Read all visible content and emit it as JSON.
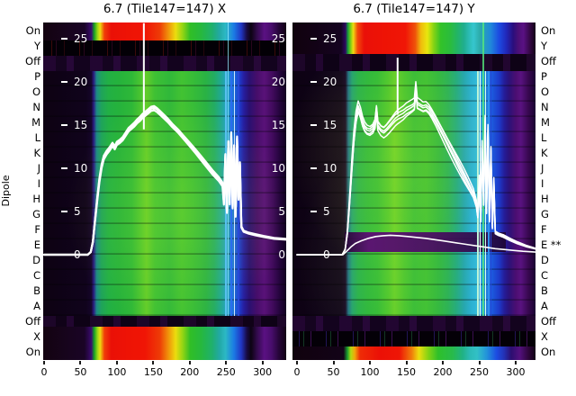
{
  "figure": {
    "left_title": "6.7 (Tile147=147) X",
    "right_title": "6.7 (Tile147=147) Y",
    "y_axis_label": "Dipole"
  },
  "colors": {
    "curve": "#ffffff",
    "text": "#000000",
    "background": "#ffffff"
  },
  "chart_data": {
    "type": "heatmap",
    "description": "Two tile beam-test panels (X and Y polarisation): spectrogram-style heatmaps (channel vs dipole row) with overlaid white power curves on an inner 0-25 scale.",
    "colormap": "jet-like: dark purple -> blue -> green -> yellow -> red",
    "x_ticks": [
      0,
      50,
      100,
      150,
      200,
      250,
      300
    ],
    "inner_y_tick_values": [
      25,
      20,
      15,
      10,
      5,
      0
    ],
    "rows_left": [
      "On",
      "Y",
      "Off",
      "P",
      "O",
      "N",
      "M",
      "L",
      "K",
      "J",
      "I",
      "H",
      "G",
      "F",
      "E",
      "D",
      "C",
      "B",
      "A",
      "Off",
      "X",
      "On"
    ],
    "rows_right": [
      "On",
      "Y",
      "Off",
      "P",
      "O",
      "N",
      "M",
      "L",
      "K",
      "J",
      "I",
      "H",
      "G",
      "F",
      "E **",
      "D",
      "C",
      "B",
      "A",
      "Off",
      "X",
      "On"
    ],
    "panels": [
      {
        "id": "left",
        "title": "6.7 (Tile147=147) X",
        "right_edge_labels": [
          25,
          20,
          15,
          10,
          5,
          0
        ],
        "spikes": [
          [
            137,
            14.5,
            26.8
          ]
        ],
        "series": [
          {
            "name": "beam-power-x",
            "strands": 3,
            "spread": 0.35,
            "spread_max": 2.8,
            "stroke_width": 2.2,
            "points": [
              [
                0,
                0
              ],
              [
                60,
                0
              ],
              [
                64,
                0.3
              ],
              [
                67,
                1.5
              ],
              [
                70,
                4
              ],
              [
                73,
                6.5
              ],
              [
                76,
                8.7
              ],
              [
                79,
                10.3
              ],
              [
                82,
                11.3
              ],
              [
                86,
                11.9
              ],
              [
                90,
                12.3
              ],
              [
                94,
                12.8
              ],
              [
                97,
                12.4
              ],
              [
                100,
                12.9
              ],
              [
                104,
                13.1
              ],
              [
                108,
                13.4
              ],
              [
                112,
                13.9
              ],
              [
                116,
                14.4
              ],
              [
                120,
                14.7
              ],
              [
                124,
                15.0
              ],
              [
                128,
                15.4
              ],
              [
                132,
                15.7
              ],
              [
                135,
                16.0
              ],
              [
                139,
                16.3
              ],
              [
                143,
                16.6
              ],
              [
                147,
                16.9
              ],
              [
                151,
                17.0
              ],
              [
                155,
                16.8
              ],
              [
                159,
                16.5
              ],
              [
                164,
                16.1
              ],
              [
                170,
                15.6
              ],
              [
                176,
                15.0
              ],
              [
                184,
                14.3
              ],
              [
                192,
                13.5
              ],
              [
                200,
                12.7
              ],
              [
                208,
                11.9
              ],
              [
                216,
                11.1
              ],
              [
                224,
                10.3
              ],
              [
                232,
                9.5
              ],
              [
                240,
                8.8
              ],
              [
                245,
                8.2
              ],
              [
                247,
                6.0
              ],
              [
                249,
                11.5
              ],
              [
                251,
                5.0
              ],
              [
                253,
                13.0
              ],
              [
                255,
                6.0
              ],
              [
                257,
                14.0
              ],
              [
                259,
                5.5
              ],
              [
                261,
                12.5
              ],
              [
                263,
                4.5
              ],
              [
                265,
                13.5
              ],
              [
                267,
                6.5
              ],
              [
                269,
                10.5
              ],
              [
                271,
                3.2
              ],
              [
                274,
                2.7
              ],
              [
                280,
                2.5
              ],
              [
                290,
                2.3
              ],
              [
                302,
                2.1
              ],
              [
                316,
                1.9
              ],
              [
                332,
                1.8
              ]
            ]
          }
        ]
      },
      {
        "id": "right",
        "title": "6.7 (Tile147=147) Y",
        "right_edge_labels": [],
        "spikes": [
          [
            138,
            16.2,
            22.8
          ]
        ],
        "series": [
          {
            "name": "beam-power-y",
            "strands": 5,
            "spread": 0.45,
            "spread_max": 4.2,
            "stroke_width": 1.5,
            "points": [
              [
                0,
                0
              ],
              [
                62,
                0
              ],
              [
                66,
                0.6
              ],
              [
                69,
                2.5
              ],
              [
                72,
                6
              ],
              [
                75,
                10
              ],
              [
                78,
                13.5
              ],
              [
                81,
                15.8
              ],
              [
                84,
                17.0
              ],
              [
                87,
                16.3
              ],
              [
                90,
                15.3
              ],
              [
                93,
                14.7
              ],
              [
                96,
                14.4
              ],
              [
                100,
                14.3
              ],
              [
                104,
                14.6
              ],
              [
                107,
                15.2
              ],
              [
                109,
                16.8
              ],
              [
                111,
                15.0
              ],
              [
                115,
                14.5
              ],
              [
                119,
                14.3
              ],
              [
                123,
                14.6
              ],
              [
                127,
                15.0
              ],
              [
                131,
                15.4
              ],
              [
                135,
                15.8
              ],
              [
                138,
                16.0
              ],
              [
                142,
                16.2
              ],
              [
                146,
                16.4
              ],
              [
                150,
                16.7
              ],
              [
                154,
                16.9
              ],
              [
                158,
                17.1
              ],
              [
                161,
                17.3
              ],
              [
                163,
                19.2
              ],
              [
                165,
                17.4
              ],
              [
                169,
                17.2
              ],
              [
                173,
                17.0
              ],
              [
                177,
                17.1
              ],
              [
                181,
                16.8
              ],
              [
                185,
                16.3
              ],
              [
                190,
                15.6
              ],
              [
                195,
                14.8
              ],
              [
                200,
                14.0
              ],
              [
                206,
                13.0
              ],
              [
                212,
                12.0
              ],
              [
                218,
                11.0
              ],
              [
                224,
                10.0
              ],
              [
                230,
                9.0
              ],
              [
                236,
                8.0
              ],
              [
                242,
                7.0
              ],
              [
                246,
                5.8
              ],
              [
                248,
                4.5
              ],
              [
                250,
                8.5
              ],
              [
                252,
                4.0
              ],
              [
                254,
                12.5
              ],
              [
                256,
                6.0
              ],
              [
                258,
                15.5
              ],
              [
                260,
                5.0
              ],
              [
                262,
                14.5
              ],
              [
                264,
                4.0
              ],
              [
                266,
                12.0
              ],
              [
                268,
                3.2
              ],
              [
                270,
                8.5
              ],
              [
                272,
                2.6
              ],
              [
                276,
                2.4
              ],
              [
                283,
                2.2
              ],
              [
                292,
                1.8
              ],
              [
                302,
                1.4
              ],
              [
                314,
                1.0
              ],
              [
                327,
                0.7
              ]
            ]
          },
          {
            "name": "flagged-dipole-e",
            "strands": 1,
            "spread": 0,
            "spread_max": 0,
            "stroke_width": 1.6,
            "points": [
              [
                0,
                0
              ],
              [
                63,
                0
              ],
              [
                68,
                0.4
              ],
              [
                74,
                0.9
              ],
              [
                80,
                1.3
              ],
              [
                88,
                1.6
              ],
              [
                98,
                1.9
              ],
              [
                108,
                2.1
              ],
              [
                118,
                2.2
              ],
              [
                128,
                2.25
              ],
              [
                140,
                2.2
              ],
              [
                152,
                2.1
              ],
              [
                164,
                2.0
              ],
              [
                176,
                1.9
              ],
              [
                188,
                1.75
              ],
              [
                200,
                1.6
              ],
              [
                212,
                1.45
              ],
              [
                224,
                1.3
              ],
              [
                236,
                1.15
              ],
              [
                248,
                1.0
              ],
              [
                260,
                0.85
              ],
              [
                272,
                0.7
              ],
              [
                284,
                0.6
              ],
              [
                296,
                0.5
              ],
              [
                310,
                0.4
              ],
              [
                327,
                0.3
              ]
            ]
          }
        ]
      }
    ]
  }
}
